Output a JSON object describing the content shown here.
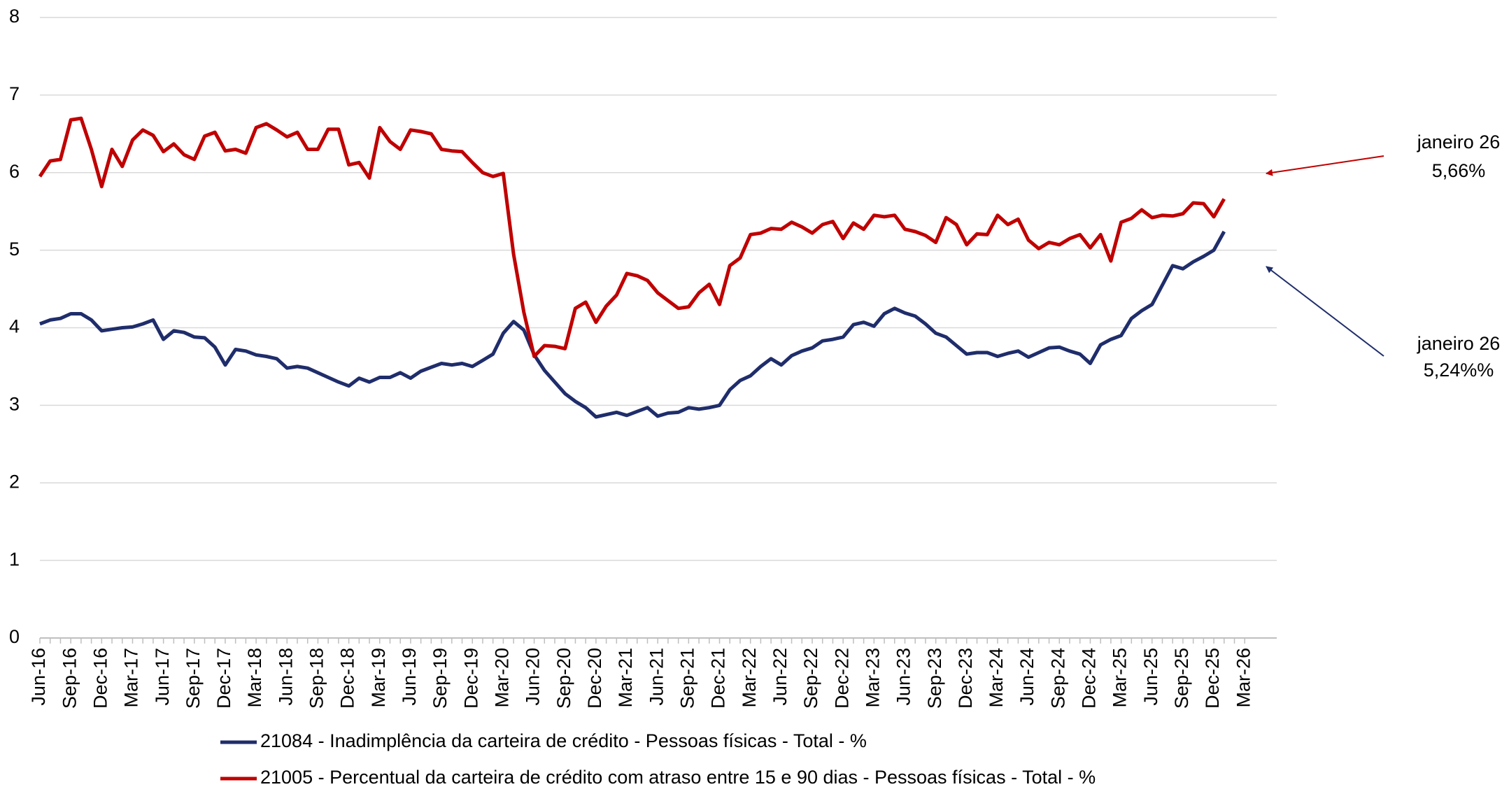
{
  "chart_data": {
    "type": "line",
    "categories": [
      "Jun-16",
      null,
      null,
      "Sep-16",
      null,
      null,
      "Dec-16",
      null,
      null,
      "Mar-17",
      null,
      null,
      "Jun-17",
      null,
      null,
      "Sep-17",
      null,
      null,
      "Dec-17",
      null,
      null,
      "Mar-18",
      null,
      null,
      "Jun-18",
      null,
      null,
      "Sep-18",
      null,
      null,
      "Dec-18",
      null,
      null,
      "Mar-19",
      null,
      null,
      "Jun-19",
      null,
      null,
      "Sep-19",
      null,
      null,
      "Dec-19",
      null,
      null,
      "Mar-20",
      null,
      null,
      "Jun-20",
      null,
      null,
      "Sep-20",
      null,
      null,
      "Dec-20",
      null,
      null,
      "Mar-21",
      null,
      null,
      "Jun-21",
      null,
      null,
      "Sep-21",
      null,
      null,
      "Dec-21",
      null,
      null,
      "Mar-22",
      null,
      null,
      "Jun-22",
      null,
      null,
      "Sep-22",
      null,
      null,
      "Dec-22",
      null,
      null,
      "Mar-23",
      null,
      null,
      "Jun-23",
      null,
      null,
      "Sep-23",
      null,
      null,
      "Dec-23",
      null,
      null,
      "Mar-24",
      null,
      null,
      "Jun-24",
      null,
      null,
      "Sep-24",
      null,
      null,
      "Dec-24",
      null,
      null,
      "Mar-25",
      null,
      null,
      "Jun-25",
      null,
      null,
      "Sep-25",
      null,
      null,
      "Dec-25",
      null,
      null,
      "Mar-26"
    ],
    "series": [
      {
        "name": "21084 - Inadimplência da carteira de crédito - Pessoas físicas - Total - %",
        "color": "#1f2d6b",
        "values": [
          4.05,
          4.1,
          4.12,
          4.18,
          4.18,
          4.1,
          3.96,
          3.98,
          4.0,
          4.01,
          4.05,
          4.1,
          3.85,
          3.96,
          3.94,
          3.88,
          3.87,
          3.75,
          3.52,
          3.72,
          3.7,
          3.65,
          3.63,
          3.6,
          3.48,
          3.5,
          3.48,
          3.42,
          3.36,
          3.3,
          3.25,
          3.35,
          3.3,
          3.36,
          3.36,
          3.42,
          3.35,
          3.44,
          3.49,
          3.54,
          3.52,
          3.54,
          3.5,
          3.58,
          3.66,
          3.93,
          4.08,
          3.97,
          3.65,
          3.45,
          3.3,
          3.15,
          3.05,
          2.97,
          2.85,
          2.88,
          2.91,
          2.87,
          2.92,
          2.97,
          2.86,
          2.9,
          2.91,
          2.97,
          2.95,
          2.97,
          3.0,
          3.2,
          3.32,
          3.38,
          3.5,
          3.6,
          3.52,
          3.64,
          3.7,
          3.74,
          3.83,
          3.85,
          3.88,
          4.04,
          4.07,
          4.02,
          4.18,
          4.25,
          4.19,
          4.15,
          4.05,
          3.93,
          3.88,
          3.77,
          3.66,
          3.68,
          3.68,
          3.63,
          3.67,
          3.7,
          3.62,
          3.68,
          3.74,
          3.75,
          3.7,
          3.66,
          3.54,
          3.78,
          3.85,
          3.9,
          4.12,
          4.22,
          4.3,
          4.55,
          4.8,
          4.76,
          4.85,
          4.92,
          5.0,
          5.24,
          null,
          null
        ]
      },
      {
        "name": "21005 - Percentual da carteira de crédito com atraso entre 15 e 90 dias - Pessoas físicas - Total - %",
        "color": "#c00000",
        "values": [
          5.95,
          6.15,
          6.17,
          6.68,
          6.7,
          6.3,
          5.82,
          6.3,
          6.08,
          6.42,
          6.55,
          6.48,
          6.27,
          6.37,
          6.23,
          6.17,
          6.47,
          6.52,
          6.28,
          6.3,
          6.25,
          6.58,
          6.63,
          6.55,
          6.46,
          6.52,
          6.3,
          6.3,
          6.56,
          6.56,
          6.1,
          6.13,
          5.93,
          6.58,
          6.4,
          6.3,
          6.55,
          6.53,
          6.5,
          6.3,
          6.28,
          6.27,
          6.13,
          6.0,
          5.95,
          5.99,
          4.95,
          4.2,
          3.63,
          3.77,
          3.76,
          3.73,
          4.25,
          4.33,
          4.07,
          4.28,
          4.42,
          4.7,
          4.67,
          4.61,
          4.45,
          4.35,
          4.25,
          4.27,
          4.45,
          4.56,
          4.3,
          4.8,
          4.9,
          5.2,
          5.22,
          5.28,
          5.27,
          5.36,
          5.3,
          5.22,
          5.33,
          5.37,
          5.15,
          5.35,
          5.27,
          5.45,
          5.43,
          5.45,
          5.27,
          5.24,
          5.19,
          5.1,
          5.42,
          5.33,
          5.07,
          5.21,
          5.2,
          5.45,
          5.33,
          5.4,
          5.13,
          5.02,
          5.1,
          5.07,
          5.15,
          5.2,
          5.03,
          5.2,
          4.86,
          5.36,
          5.41,
          5.52,
          5.42,
          5.45,
          5.44,
          5.47,
          5.61,
          5.6,
          5.43,
          5.66,
          null,
          null
        ]
      }
    ],
    "ylim": [
      0,
      8
    ],
    "yticks": [
      0,
      1,
      2,
      3,
      4,
      5,
      6,
      7,
      8
    ],
    "grid": true,
    "annotations": [
      [
        "janeiro 26",
        "5,66%"
      ],
      [
        "janeiro 26",
        "5,24%%"
      ]
    ]
  }
}
